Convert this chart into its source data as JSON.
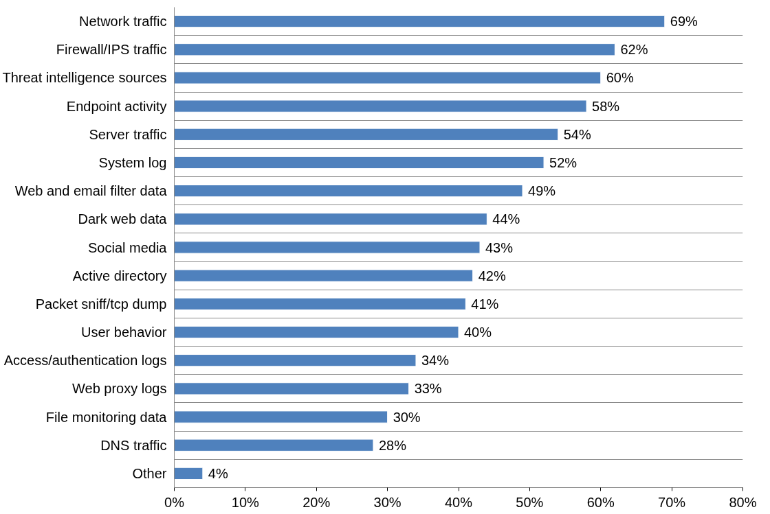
{
  "chart_data": {
    "type": "bar",
    "orientation": "horizontal",
    "categories": [
      "Network traffic",
      "Firewall/IPS traffic",
      "Threat intelligence sources",
      "Endpoint activity",
      "Server traffic",
      "System log",
      "Web and email filter data",
      "Dark web data",
      "Social media",
      "Active directory",
      "Packet sniff/tcp dump",
      "User behavior",
      "Access/authentication logs",
      "Web proxy logs",
      "File monitoring data",
      "DNS traffic",
      "Other"
    ],
    "values": [
      69,
      62,
      60,
      58,
      54,
      52,
      49,
      44,
      43,
      42,
      41,
      40,
      34,
      33,
      30,
      28,
      4
    ],
    "value_labels": [
      "69%",
      "62%",
      "60%",
      "58%",
      "54%",
      "52%",
      "49%",
      "44%",
      "43%",
      "42%",
      "41%",
      "40%",
      "34%",
      "33%",
      "30%",
      "28%",
      "4%"
    ],
    "color": "#4f81bd",
    "xlim": [
      0,
      80
    ],
    "xticks": [
      {
        "value": 0,
        "label": "0%"
      },
      {
        "value": 10,
        "label": "10%"
      },
      {
        "value": 20,
        "label": "20%"
      },
      {
        "value": 30,
        "label": "30%"
      },
      {
        "value": 40,
        "label": "40%"
      },
      {
        "value": 50,
        "label": "50%"
      },
      {
        "value": 60,
        "label": "60%"
      },
      {
        "value": 70,
        "label": "70%"
      },
      {
        "value": 80,
        "label": "80%"
      }
    ],
    "grid": "y"
  }
}
